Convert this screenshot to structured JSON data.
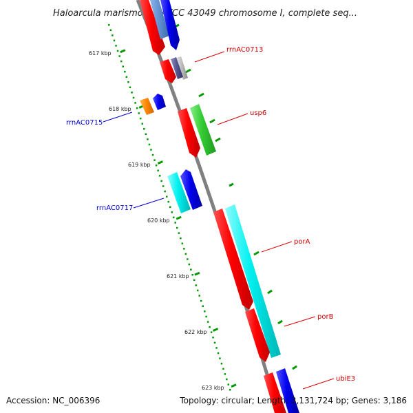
{
  "title": "Haloarcula marismortui ATCC 43049 chromosome I, complete seq...",
  "footer": {
    "accession": "Accession: NC_006396",
    "topology": "Topology: circular; Length: 3,131,724 bp; Genes: 3,186"
  },
  "colors": {
    "red": "#ff0000",
    "blue": "#0000ee",
    "cyan": "#00e8e8",
    "green": "#33cc33",
    "orange": "#ff8800",
    "steelblue": "#5f8fd0",
    "tick": "#009900",
    "backbone": "#808080"
  },
  "scale": {
    "ticks": [
      {
        "label": "617 kbp"
      },
      {
        "label": "618 kbp"
      },
      {
        "label": "619 kbp"
      },
      {
        "label": "620 kbp"
      },
      {
        "label": "621 kbp"
      },
      {
        "label": "622 kbp"
      },
      {
        "label": "623 kbp"
      }
    ]
  },
  "genes": [
    {
      "label": "rrnAC0713",
      "strand": "forward"
    },
    {
      "label": "usp6",
      "strand": "forward"
    },
    {
      "label": "porA",
      "strand": "forward"
    },
    {
      "label": "porB",
      "strand": "forward"
    },
    {
      "label": "ubiE3",
      "strand": "forward"
    },
    {
      "label": "rrnAC0715",
      "strand": "reverse"
    },
    {
      "label": "rrnAC0717",
      "strand": "reverse"
    }
  ]
}
